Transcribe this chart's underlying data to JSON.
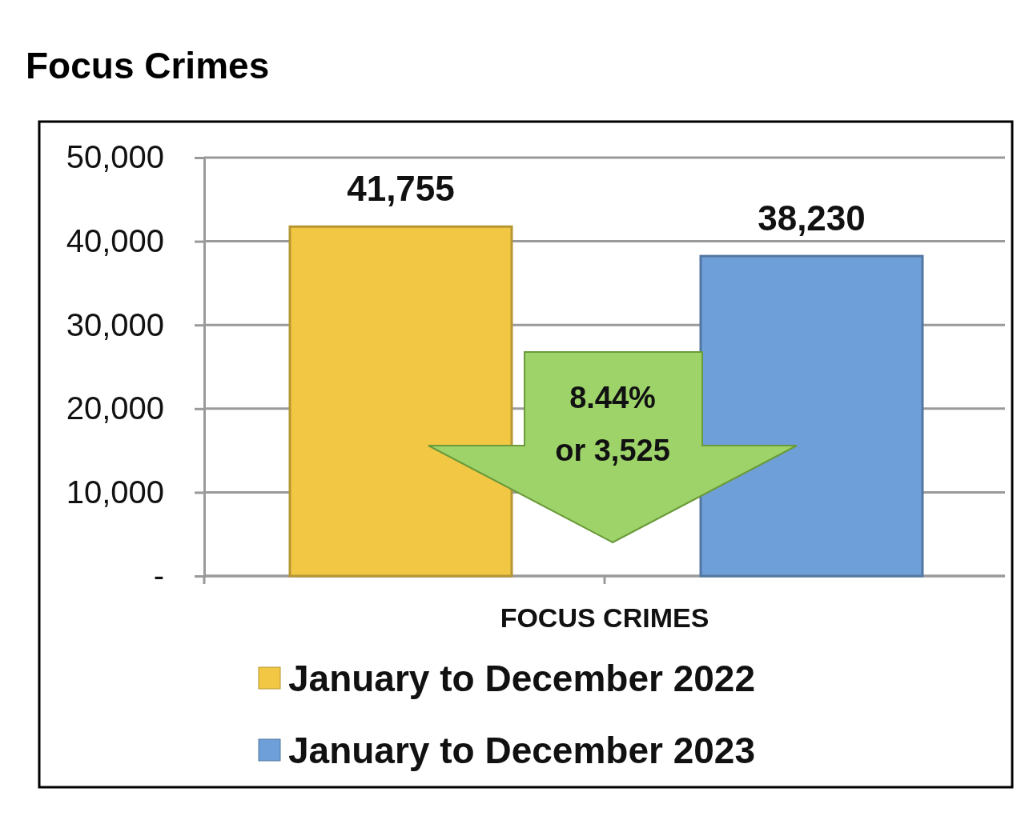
{
  "chart_data": {
    "type": "bar",
    "title": "Focus Crimes",
    "categories": [
      "FOCUS CRIMES"
    ],
    "series": [
      {
        "name": "January to December 2022",
        "color": "#f2c744",
        "values": [
          41755
        ],
        "value_labels": [
          "41,755"
        ]
      },
      {
        "name": "January to December 2023",
        "color": "#6f9fd8",
        "values": [
          38230
        ],
        "value_labels": [
          "38,230"
        ]
      }
    ],
    "ylim": [
      0,
      50000
    ],
    "yticks": [
      {
        "value": 0,
        "label": "-"
      },
      {
        "value": 10000,
        "label": "10,000"
      },
      {
        "value": 20000,
        "label": "20,000"
      },
      {
        "value": 30000,
        "label": "30,000"
      },
      {
        "value": 40000,
        "label": "40,000"
      },
      {
        "value": 50000,
        "label": "50,000"
      }
    ],
    "grid": "y",
    "legend": "bottom",
    "annotations": [
      "8.44%",
      "or 3,525"
    ]
  }
}
